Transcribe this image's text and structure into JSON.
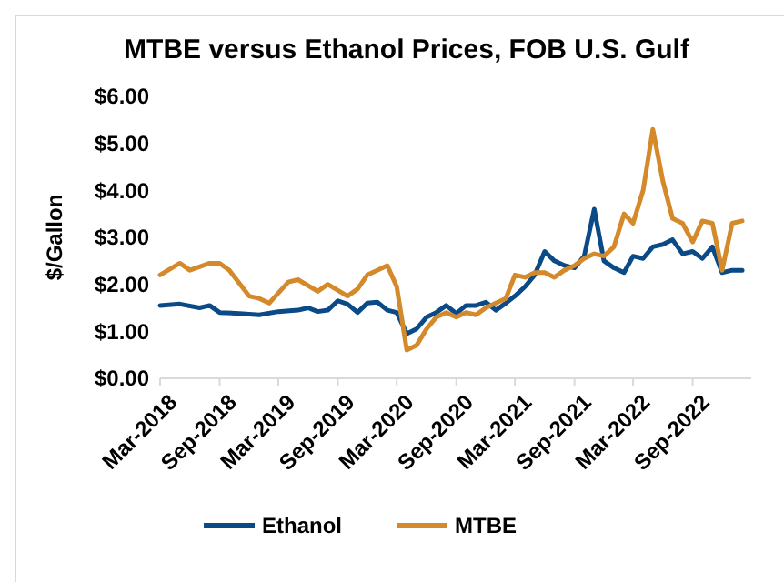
{
  "chart_data": {
    "type": "line",
    "title": "MTBE versus Ethanol Prices, FOB U.S. Gulf",
    "ylabel": "$/Gallon",
    "xlim": [
      "2018-03",
      "2023-03"
    ],
    "xticks": [
      {
        "value": "2018-03",
        "label": "Mar-2018"
      },
      {
        "value": "2018-09",
        "label": "Sep-2018"
      },
      {
        "value": "2019-03",
        "label": "Mar-2019"
      },
      {
        "value": "2019-09",
        "label": "Sep-2019"
      },
      {
        "value": "2020-03",
        "label": "Mar-2020"
      },
      {
        "value": "2020-09",
        "label": "Sep-2020"
      },
      {
        "value": "2021-03",
        "label": "Mar-2021"
      },
      {
        "value": "2021-09",
        "label": "Sep-2021"
      },
      {
        "value": "2022-03",
        "label": "Mar-2022"
      },
      {
        "value": "2022-09",
        "label": "Sep-2022"
      }
    ],
    "ylim": [
      0,
      6
    ],
    "yticks": [
      {
        "value": 0,
        "label": "$0.00"
      },
      {
        "value": 1,
        "label": "$1.00"
      },
      {
        "value": 2,
        "label": "$2.00"
      },
      {
        "value": 3,
        "label": "$3.00"
      },
      {
        "value": 4,
        "label": "$4.00"
      },
      {
        "value": 5,
        "label": "$5.00"
      },
      {
        "value": 6,
        "label": "$6.00"
      }
    ],
    "grid": false,
    "legend": "bottom",
    "marker": "none",
    "line_style": "solid",
    "series": [
      {
        "name": "Ethanol",
        "color": "#0a4a86",
        "x": [
          "2018-03",
          "2018-05",
          "2018-07",
          "2018-08",
          "2018-09",
          "2018-11",
          "2019-01",
          "2019-03",
          "2019-05",
          "2019-06",
          "2019-07",
          "2019-08",
          "2019-09",
          "2019-10",
          "2019-11",
          "2019-12",
          "2020-01",
          "2020-02",
          "2020-03",
          "2020-04",
          "2020-05",
          "2020-06",
          "2020-07",
          "2020-08",
          "2020-09",
          "2020-10",
          "2020-11",
          "2020-12",
          "2021-01",
          "2021-02",
          "2021-03",
          "2021-04",
          "2021-05",
          "2021-06",
          "2021-07",
          "2021-08",
          "2021-09",
          "2021-10",
          "2021-11",
          "2021-12",
          "2022-01",
          "2022-02",
          "2022-03",
          "2022-04",
          "2022-05",
          "2022-06",
          "2022-07",
          "2022-08",
          "2022-09",
          "2022-10",
          "2022-11",
          "2022-12",
          "2023-01",
          "2023-02"
        ],
        "values": [
          1.55,
          1.58,
          1.5,
          1.55,
          1.4,
          1.38,
          1.35,
          1.42,
          1.45,
          1.5,
          1.42,
          1.45,
          1.65,
          1.58,
          1.4,
          1.6,
          1.62,
          1.45,
          1.4,
          0.95,
          1.05,
          1.3,
          1.4,
          1.55,
          1.38,
          1.55,
          1.55,
          1.62,
          1.45,
          1.6,
          1.75,
          1.95,
          2.2,
          2.7,
          2.5,
          2.4,
          2.35,
          2.6,
          3.6,
          2.5,
          2.35,
          2.25,
          2.6,
          2.55,
          2.8,
          2.85,
          2.95,
          2.65,
          2.7,
          2.55,
          2.8,
          2.25,
          2.3,
          2.3
        ]
      },
      {
        "name": "MTBE",
        "color": "#d4892a",
        "x": [
          "2018-03",
          "2018-05",
          "2018-06",
          "2018-08",
          "2018-09",
          "2018-10",
          "2018-12",
          "2019-01",
          "2019-02",
          "2019-04",
          "2019-05",
          "2019-07",
          "2019-08",
          "2019-10",
          "2019-11",
          "2019-12",
          "2020-01",
          "2020-02",
          "2020-03",
          "2020-04",
          "2020-05",
          "2020-06",
          "2020-07",
          "2020-08",
          "2020-09",
          "2020-10",
          "2020-11",
          "2020-12",
          "2021-01",
          "2021-02",
          "2021-03",
          "2021-04",
          "2021-05",
          "2021-06",
          "2021-07",
          "2021-08",
          "2021-09",
          "2021-10",
          "2021-11",
          "2021-12",
          "2022-01",
          "2022-02",
          "2022-03",
          "2022-04",
          "2022-05",
          "2022-06",
          "2022-07",
          "2022-08",
          "2022-09",
          "2022-10",
          "2022-11",
          "2022-12",
          "2023-01",
          "2023-02"
        ],
        "values": [
          2.2,
          2.45,
          2.3,
          2.45,
          2.45,
          2.3,
          1.75,
          1.7,
          1.6,
          2.05,
          2.1,
          1.85,
          2.0,
          1.75,
          1.9,
          2.2,
          2.3,
          2.4,
          1.95,
          0.6,
          0.7,
          1.05,
          1.3,
          1.4,
          1.3,
          1.4,
          1.35,
          1.5,
          1.6,
          1.7,
          2.2,
          2.15,
          2.25,
          2.25,
          2.15,
          2.3,
          2.4,
          2.55,
          2.65,
          2.6,
          2.8,
          3.5,
          3.3,
          4.0,
          5.3,
          4.2,
          3.4,
          3.3,
          2.9,
          3.35,
          3.3,
          2.3,
          3.3,
          3.35
        ]
      }
    ]
  }
}
